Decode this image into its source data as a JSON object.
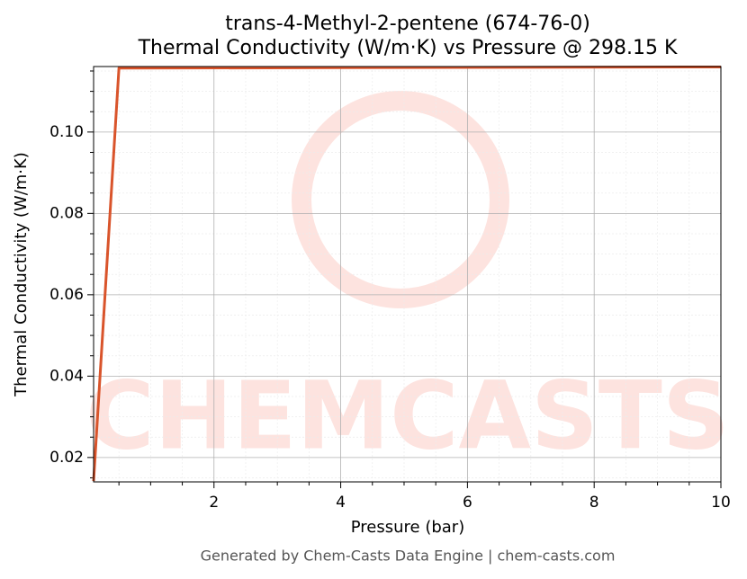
{
  "chart_data": {
    "type": "line",
    "title": "trans-4-Methyl-2-pentene (674-76-0)",
    "subtitle": "Thermal Conductivity (W/m·K) vs Pressure @ 298.15 K",
    "xlabel": "Pressure (bar)",
    "ylabel": "Thermal Conductivity (W/m·K)",
    "footer": "Generated by Chem-Casts Data Engine | chem-casts.com",
    "watermark": "CHEMCASTS",
    "x": [
      0.1,
      0.5,
      10
    ],
    "series": [
      {
        "name": "Thermal Conductivity",
        "color": "#d9542b",
        "values": [
          0.0142,
          0.1157,
          0.116
        ]
      }
    ],
    "xlim": [
      0.1,
      10
    ],
    "ylim": [
      0.014,
      0.1161
    ],
    "xticks": [
      2,
      4,
      6,
      8,
      10
    ],
    "yticks": [
      0.02,
      0.04,
      0.06,
      0.08,
      {
        "value": 0.1,
        "label": "0.10"
      }
    ],
    "xminorticks": [
      0.5,
      1,
      1.5,
      2.5,
      3,
      3.5,
      4.5,
      5,
      5.5,
      6.5,
      7,
      7.5,
      8.5,
      9,
      9.5
    ],
    "yminorticks": [
      0.015,
      0.025,
      0.03,
      0.035,
      0.045,
      0.05,
      0.055,
      0.065,
      0.07,
      0.075,
      0.085,
      0.09,
      0.095,
      0.105,
      0.11,
      0.115
    ],
    "grid": true
  }
}
